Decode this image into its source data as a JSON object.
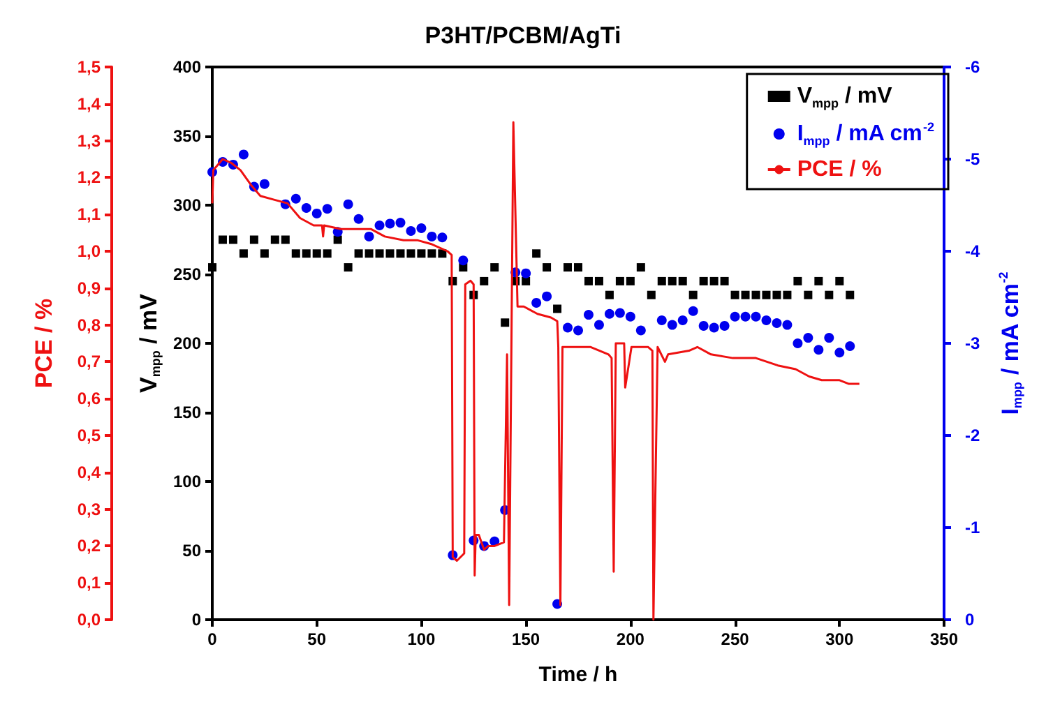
{
  "chart_data": {
    "type": "scatter",
    "title": "P3HT/PCBM/AgTi",
    "xlabel": "Time / h",
    "ylabel": "V$_{mpp}$ / mV",
    "y2label": "I$_{mpp}$ / mA cm$^{-2}$",
    "y3label": "PCE / %",
    "x": [
      0,
      5,
      10,
      15,
      20,
      25,
      30,
      35,
      40,
      45,
      50,
      55,
      60,
      65,
      70,
      75,
      80,
      85,
      90,
      95,
      100,
      105,
      110,
      115,
      120,
      125,
      130,
      135,
      140,
      145,
      150,
      155,
      160,
      165,
      170,
      175,
      180,
      185,
      190,
      195,
      200,
      205,
      210,
      215,
      220,
      225,
      230,
      235,
      240,
      245,
      250,
      255,
      260,
      265,
      270,
      275,
      280,
      285,
      290,
      295,
      300,
      305
    ],
    "xlim": [
      0,
      350
    ],
    "xticks": [
      0,
      50,
      100,
      150,
      200,
      250,
      300,
      350
    ],
    "ylim": [
      0,
      400
    ],
    "yticks": [
      0,
      50,
      100,
      150,
      200,
      250,
      300,
      350,
      400
    ],
    "y2lim": [
      0,
      -6
    ],
    "y2ticks": [
      0,
      -1,
      -2,
      -3,
      -4,
      -5,
      -6
    ],
    "y3lim": [
      0,
      1.5
    ],
    "y3ticks": [
      {
        "value": 0,
        "label": "0,0"
      },
      {
        "value": 0.1,
        "label": "0,1"
      },
      {
        "value": 0.2,
        "label": "0,2"
      },
      {
        "value": 0.3,
        "label": "0,3"
      },
      {
        "value": 0.4,
        "label": "0,4"
      },
      {
        "value": 0.5,
        "label": "0,5"
      },
      {
        "value": 0.6,
        "label": "0,6"
      },
      {
        "value": 0.7,
        "label": "0,7"
      },
      {
        "value": 0.8,
        "label": "0,8"
      },
      {
        "value": 0.9,
        "label": "0,9"
      },
      {
        "value": 1.0,
        "label": "1,0"
      },
      {
        "value": 1.1,
        "label": "1,1"
      },
      {
        "value": 1.2,
        "label": "1,2"
      },
      {
        "value": 1.3,
        "label": "1,3"
      },
      {
        "value": 1.4,
        "label": "1,4"
      },
      {
        "value": 1.5,
        "label": "1,5"
      }
    ],
    "grid": false,
    "legend": "top right",
    "series": [
      {
        "name": "V$_{mpp}$ / mV",
        "marker": "square",
        "color": "#000000",
        "values": [
          255,
          275,
          275,
          265,
          275,
          265,
          275,
          275,
          265,
          265,
          265,
          265,
          275,
          255,
          265,
          265,
          265,
          265,
          265,
          265,
          265,
          265,
          265,
          245,
          255,
          235,
          245,
          255,
          215,
          245,
          245,
          265,
          255,
          225,
          255,
          255,
          245,
          245,
          235,
          245,
          245,
          255,
          235,
          245,
          245,
          245,
          235,
          245,
          245,
          245,
          235,
          235,
          235,
          235,
          235,
          235,
          245,
          235,
          245,
          235,
          245,
          235
        ]
      },
      {
        "name": "I$_{mpp}$ / mA cm$^{-2}$",
        "marker": "circle",
        "axis": "y2",
        "color": "#0000ee",
        "values": [
          -4.86,
          -4.97,
          -4.94,
          -5.05,
          -4.7,
          -4.73,
          null,
          -4.51,
          -4.57,
          -4.47,
          -4.41,
          -4.46,
          -4.21,
          -4.51,
          -4.35,
          -4.16,
          -4.28,
          -4.3,
          -4.31,
          -4.22,
          -4.25,
          -4.16,
          -4.15,
          -0.7,
          -3.9,
          -0.86,
          -0.8,
          -0.85,
          -1.19,
          -3.77,
          -3.76,
          -3.44,
          -3.51,
          -0.17,
          -3.17,
          -3.14,
          -3.31,
          -3.2,
          -3.32,
          -3.33,
          -3.29,
          -3.14,
          null,
          -3.25,
          -3.2,
          -3.25,
          -3.35,
          -3.19,
          -3.17,
          -3.19,
          -3.29,
          -3.29,
          -3.29,
          -3.25,
          -3.22,
          -3.2,
          -3.0,
          -3.06,
          -2.93,
          -3.06,
          -2.9,
          -2.97
        ]
      },
      {
        "name": "PCE / %",
        "type": "line",
        "marker": "none",
        "line_style": "solid",
        "axis": "y3",
        "color": "#ee1111",
        "x": [
          0,
          0.5,
          5,
          9,
          13.5,
          18.5,
          23,
          29.5,
          36,
          42,
          48.5,
          52.5,
          53,
          53.5,
          61.5,
          69.5,
          76,
          82.5,
          91.5,
          98,
          104.5,
          112.5,
          114.5,
          115,
          117,
          120.5,
          121,
          123.5,
          125,
          125.5,
          126,
          127.5,
          130,
          132,
          135,
          139.5,
          141,
          142,
          144,
          146,
          149,
          155.5,
          162,
          165,
          165.5,
          166.5,
          167.5,
          174.5,
          181,
          189.5,
          191,
          192,
          193,
          197,
          197.5,
          200.5,
          208.5,
          210.5,
          211,
          213,
          216.5,
          218,
          228,
          232,
          238.5,
          249,
          260,
          270.5,
          279,
          285.5,
          291.5,
          300,
          304.5,
          309.5
        ],
        "values": [
          1.13,
          1.22,
          1.25,
          1.24,
          1.22,
          1.18,
          1.15,
          1.14,
          1.13,
          1.09,
          1.07,
          1.07,
          1.04,
          1.07,
          1.06,
          1.06,
          1.06,
          1.04,
          1.03,
          1.03,
          1.02,
          1.0,
          0.99,
          0.17,
          0.16,
          0.18,
          0.91,
          0.92,
          0.91,
          0.12,
          0.23,
          0.23,
          0.19,
          0.2,
          0.2,
          0.21,
          0.72,
          0.04,
          1.35,
          0.85,
          0.85,
          0.83,
          0.82,
          0.81,
          0.74,
          0.04,
          0.74,
          0.74,
          0.74,
          0.72,
          0.71,
          0.13,
          0.75,
          0.75,
          0.63,
          0.74,
          0.74,
          0.73,
          0,
          0.74,
          0.7,
          0.72,
          0.73,
          0.74,
          0.72,
          0.71,
          0.71,
          0.69,
          0.68,
          0.66,
          0.65,
          0.65,
          0.64,
          0.64
        ]
      }
    ]
  }
}
